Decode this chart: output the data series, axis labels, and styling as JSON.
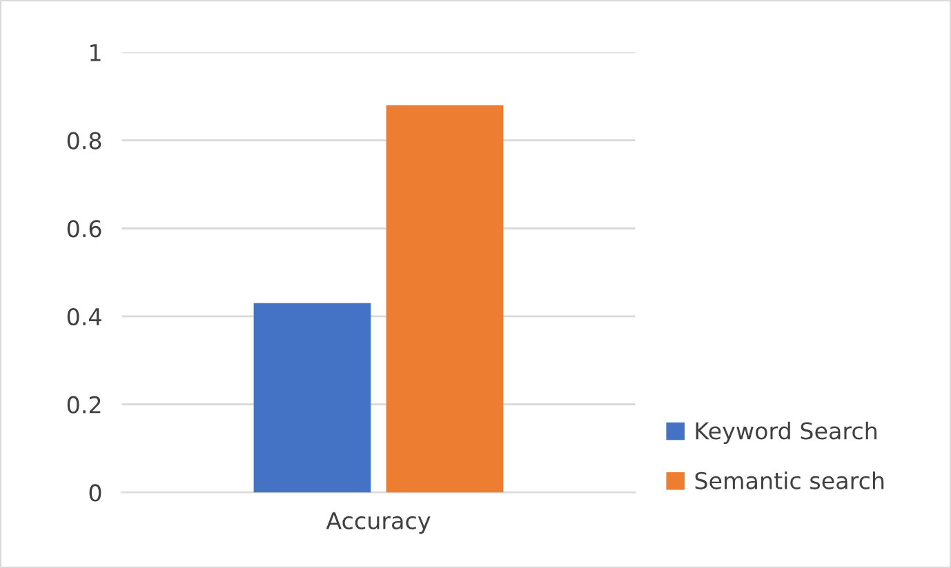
{
  "chart_data": {
    "type": "bar",
    "categories": [
      "Accuracy"
    ],
    "series": [
      {
        "name": "Keyword Search",
        "color": "#4472c4",
        "values": [
          0.43
        ]
      },
      {
        "name": "Semantic search",
        "color": "#ed7d31",
        "values": [
          0.88
        ]
      }
    ],
    "ylim": [
      0,
      1
    ],
    "yticks": [
      0,
      0.2,
      0.4,
      0.6,
      0.8,
      1
    ],
    "grid": "y",
    "legend": "right"
  }
}
